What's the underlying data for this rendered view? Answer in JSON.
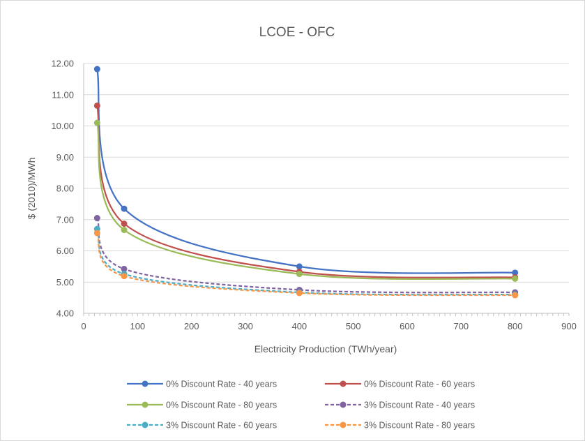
{
  "chart_data": {
    "type": "scatter",
    "title": "LCOE - OFC",
    "xlabel": "Electricity Production (TWh/year)",
    "ylabel": "$ (2010)/MWh",
    "xlim": [
      0,
      900
    ],
    "ylim": [
      4.0,
      12.0
    ],
    "xticks": [
      0,
      100,
      200,
      300,
      400,
      500,
      600,
      700,
      800,
      900
    ],
    "yticks": [
      "4.00",
      "5.00",
      "6.00",
      "7.00",
      "8.00",
      "9.00",
      "10.00",
      "11.00",
      "12.00"
    ],
    "grid": true,
    "legend_position": "bottom",
    "x": [
      25,
      75,
      400,
      800
    ],
    "series": [
      {
        "name": "0% Discount Rate - 40 years",
        "values": [
          11.82,
          7.35,
          5.5,
          5.3
        ],
        "color": "#4472c4",
        "dashed": false
      },
      {
        "name": "0% Discount Rate - 60 years",
        "values": [
          10.65,
          6.87,
          5.33,
          5.15
        ],
        "color": "#c0504d",
        "dashed": false
      },
      {
        "name": "0% Discount Rate - 80 years",
        "values": [
          10.1,
          6.67,
          5.26,
          5.11
        ],
        "color": "#9bbb59",
        "dashed": false
      },
      {
        "name": "3% Discount Rate - 40 years",
        "values": [
          7.05,
          5.42,
          4.75,
          4.67
        ],
        "color": "#8064a2",
        "dashed": true
      },
      {
        "name": "3% Discount Rate - 60 years",
        "values": [
          6.7,
          5.26,
          4.67,
          4.6
        ],
        "color": "#4bacc6",
        "dashed": true
      },
      {
        "name": "3% Discount Rate - 80 years",
        "values": [
          6.57,
          5.19,
          4.65,
          4.58
        ],
        "color": "#f79646",
        "dashed": true
      }
    ]
  }
}
